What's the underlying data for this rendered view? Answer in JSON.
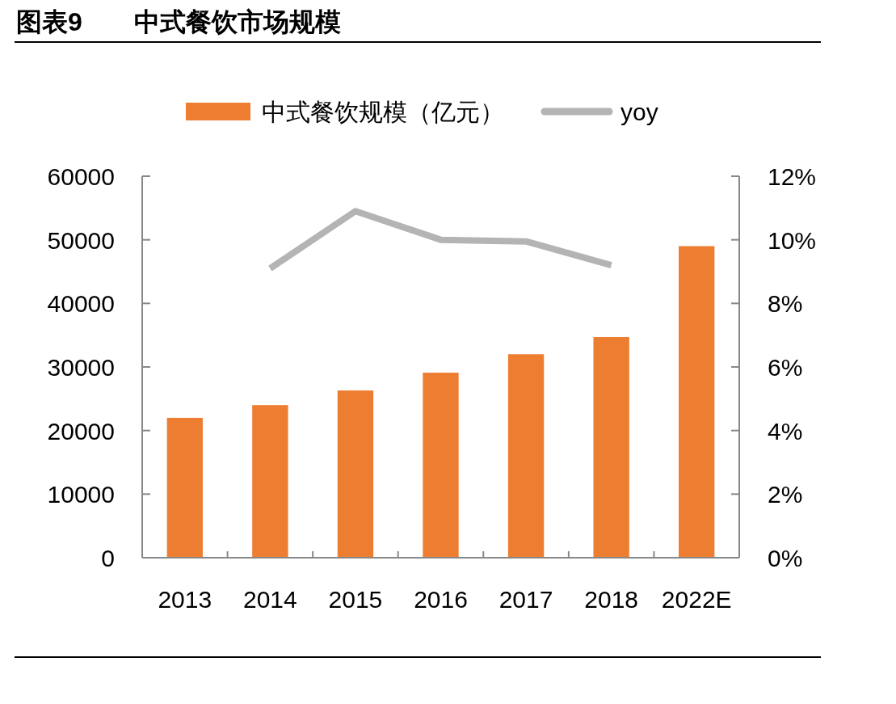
{
  "chart_data": {
    "type": "bar",
    "title": "图表9　　中式餐饮市场规模",
    "categories": [
      "2013",
      "2014",
      "2015",
      "2016",
      "2017",
      "2018",
      "2022E"
    ],
    "series": [
      {
        "name": "中式餐饮规模（亿元）",
        "color": "#ed7d31",
        "values": [
          22000,
          24000,
          26300,
          29100,
          32000,
          34700,
          49000
        ]
      },
      {
        "name": "yoy",
        "type": "line",
        "axis": "y2",
        "color": "#b4b4b4",
        "values": [
          null,
          9.1,
          10.9,
          10.0,
          9.95,
          9.2,
          null
        ]
      }
    ],
    "ylim": [
      0,
      60000
    ],
    "yticks": [
      0,
      10000,
      20000,
      30000,
      40000,
      50000,
      60000
    ],
    "y2lim": [
      0,
      12
    ],
    "y2ticks": [
      {
        "value": 0,
        "label": "0%"
      },
      {
        "value": 2,
        "label": "2%"
      },
      {
        "value": 4,
        "label": "4%"
      },
      {
        "value": 6,
        "label": "6%"
      },
      {
        "value": 8,
        "label": "8%"
      },
      {
        "value": 10,
        "label": "10%"
      },
      {
        "value": 12,
        "label": "12%"
      }
    ],
    "legend": "top",
    "grid": false,
    "marker": "none"
  }
}
